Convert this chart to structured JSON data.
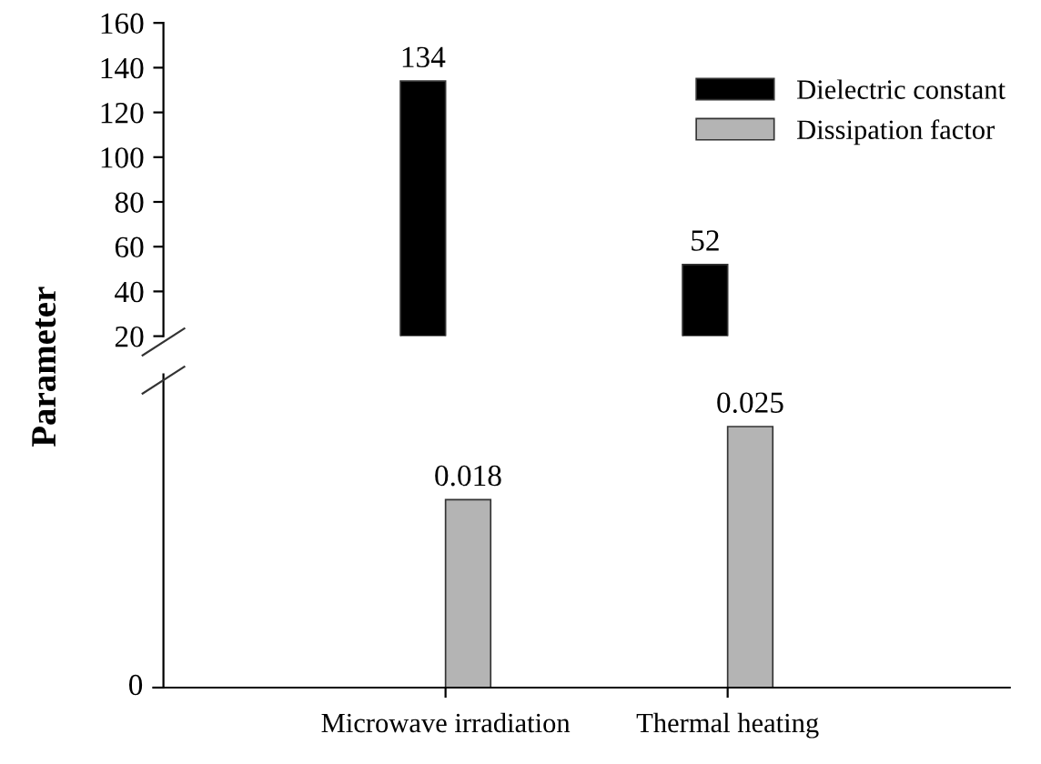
{
  "chart_data": [
    {
      "type": "bar",
      "ylabel": "Parameter",
      "categories": [
        null,
        null
      ],
      "ylim": [
        20,
        160
      ],
      "yticks": [
        20,
        40,
        60,
        80,
        100,
        120,
        140,
        160
      ],
      "tick_labels": "y",
      "data_labels": true,
      "legend": "top right",
      "grid": false,
      "series": [
        {
          "name": "Dielectric constant",
          "color": "#000000",
          "values": [
            134,
            52
          ]
        }
      ]
    },
    {
      "type": "bar",
      "categories": [
        "Microwave irradiation",
        "Thermal heating"
      ],
      "data_labels": true,
      "legend": "top right",
      "grid": false,
      "annotations": [
        "0"
      ],
      "series": [
        {
          "name": "Dissipation factor",
          "color": "#b4b4b4",
          "values": [
            0.018,
            0.025
          ]
        }
      ]
    }
  ]
}
